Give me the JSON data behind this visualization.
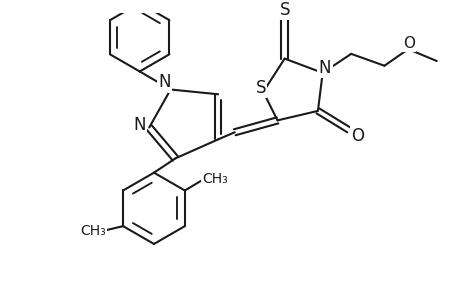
{
  "bg_color": "#ffffff",
  "line_color": "#1a1a1a",
  "line_width": 1.5,
  "font_size": 11,
  "figsize": [
    4.6,
    3.0
  ],
  "dpi": 100,
  "xlim": [
    0,
    9.2
  ],
  "ylim": [
    0,
    6.0
  ]
}
